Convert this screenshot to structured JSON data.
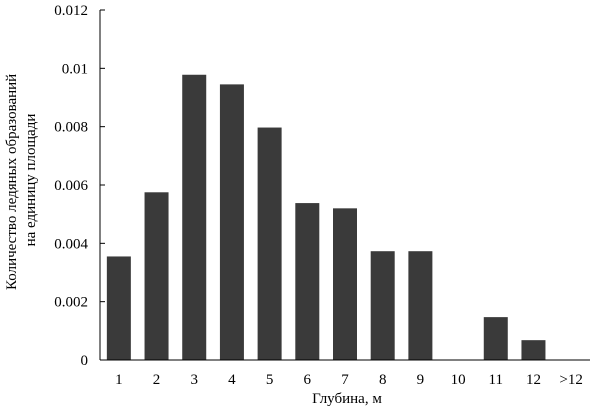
{
  "chart_data": {
    "type": "bar",
    "categories": [
      "1",
      "2",
      "3",
      "4",
      "5",
      "6",
      "7",
      "8",
      "9",
      "10",
      "11",
      "12",
      ">12"
    ],
    "values": [
      0.00355,
      0.00575,
      0.00978,
      0.00945,
      0.00797,
      0.00538,
      0.0052,
      0.00373,
      0.00373,
      0,
      0.00147,
      0.00068,
      0
    ],
    "title": "",
    "xlabel": "Глубина, м",
    "ylabel_lines": [
      "Количество ледяных образований",
      "на единицу площади"
    ],
    "ylim": [
      0,
      0.012
    ],
    "yticks": [
      "0",
      "0.002",
      "0.004",
      "0.006",
      "0.008",
      "0.01",
      "0.012"
    ],
    "bar_color": "#3a3a3a",
    "grid": false,
    "legend": "none"
  }
}
